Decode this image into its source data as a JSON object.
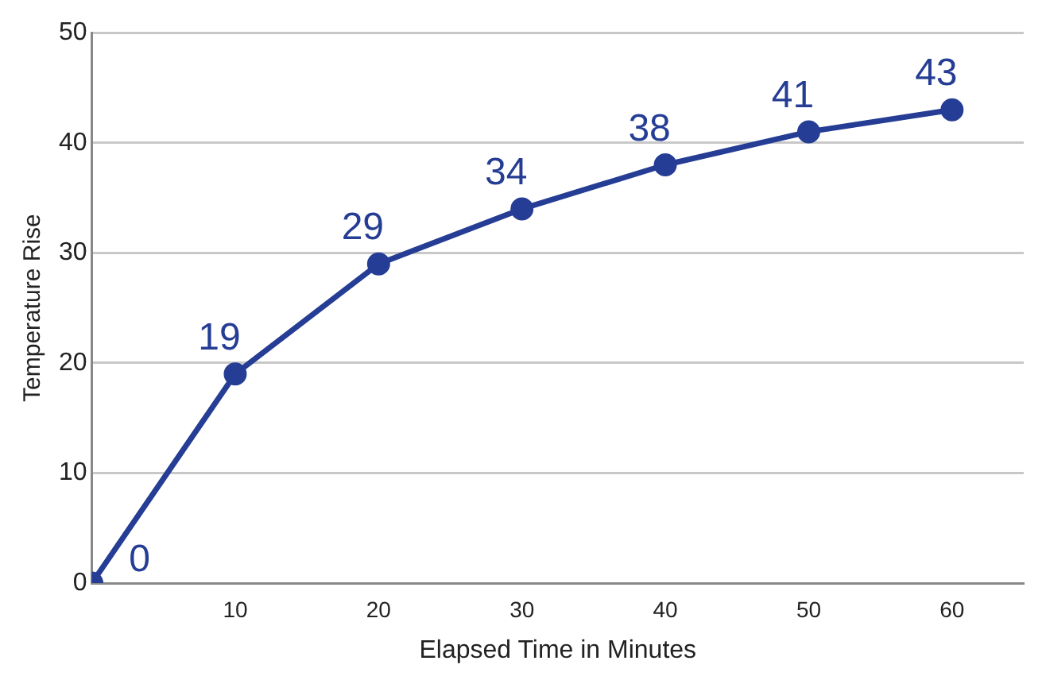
{
  "chart_data": {
    "type": "line",
    "xlabel": "Elapsed Time in Minutes",
    "ylabel": "Temperature Rise",
    "x": [
      0,
      10,
      20,
      30,
      40,
      50,
      60
    ],
    "series": [
      {
        "color": "#253d94",
        "values": [
          0,
          19,
          29,
          34,
          38,
          41,
          43
        ]
      }
    ],
    "xlim": [
      0,
      65
    ],
    "xticks": [
      10,
      20,
      30,
      40,
      50,
      60
    ],
    "ylim": [
      0,
      50
    ],
    "yticks": [
      0,
      10,
      20,
      30,
      40,
      50
    ],
    "grid": "y",
    "marker": "circle",
    "line_style": "solid",
    "data_labels": true,
    "legend": false
  }
}
